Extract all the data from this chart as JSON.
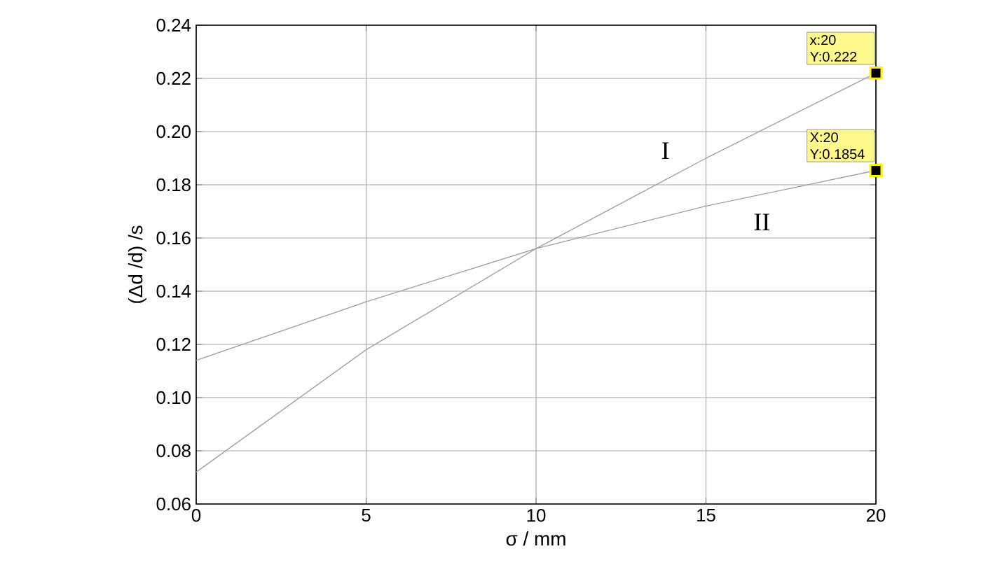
{
  "chart_data": {
    "type": "line",
    "xlabel": "σ / mm",
    "ylabel": "(Δd /d) /s",
    "x": [
      0,
      5,
      10,
      15,
      20
    ],
    "series": [
      {
        "name": "I",
        "color": "#a0a0a0",
        "values": [
          0.072,
          0.118,
          0.156,
          0.19,
          0.222
        ]
      },
      {
        "name": "II",
        "color": "#a0a0a0",
        "values": [
          0.114,
          0.136,
          0.156,
          0.172,
          0.1854
        ]
      }
    ],
    "xlim": [
      0,
      20
    ],
    "xticks": [
      0,
      5,
      10,
      15,
      20
    ],
    "ylim": [
      0.06,
      0.24
    ],
    "yticks": [
      {
        "value": 0.06,
        "label": "0.06"
      },
      {
        "value": 0.08,
        "label": "0.08"
      },
      {
        "value": 0.1,
        "label": "0.10"
      },
      {
        "value": 0.12,
        "label": "0.12"
      },
      {
        "value": 0.14,
        "label": "0.14"
      },
      {
        "value": 0.16,
        "label": "0.16"
      },
      {
        "value": 0.18,
        "label": "0.18"
      },
      {
        "value": 0.2,
        "label": "0.20"
      },
      {
        "value": 0.22,
        "label": "0.22"
      },
      {
        "value": 0.24,
        "label": "0.24"
      }
    ],
    "grid": true,
    "marker": "none",
    "line_style": "solid",
    "annotations": [
      {
        "text": "x:20 Y:0.222",
        "x": 20,
        "y": 0.222
      },
      {
        "text": "X:20 Y:0.1854",
        "x": 20,
        "y": 0.1854
      }
    ]
  }
}
